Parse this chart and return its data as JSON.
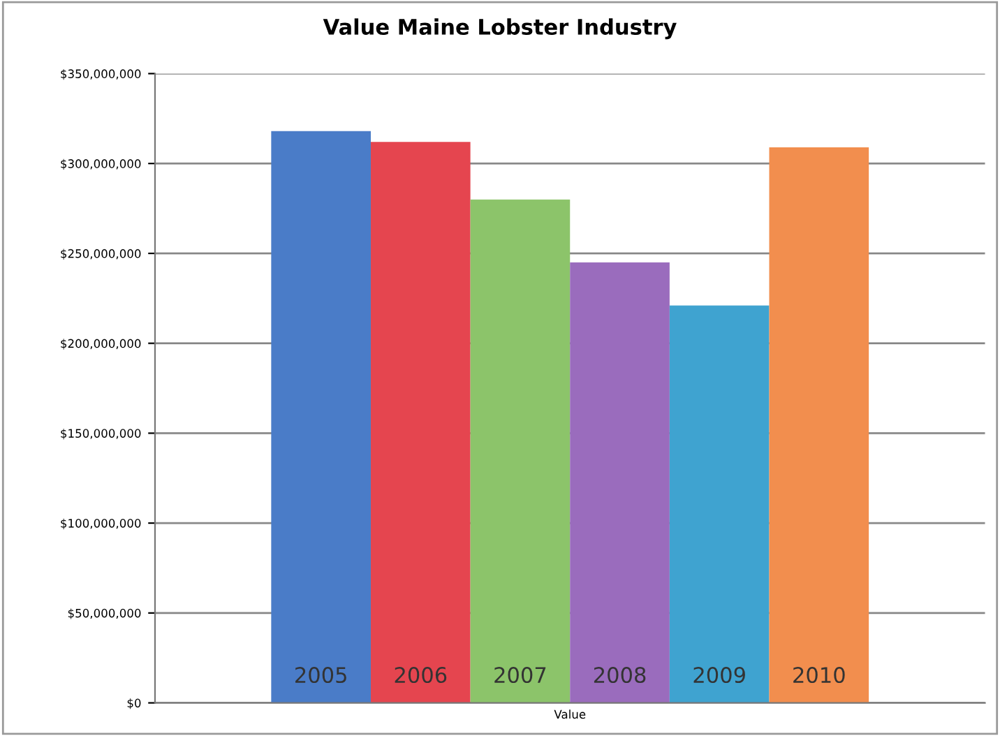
{
  "chart_data": {
    "type": "bar",
    "title": "Value Maine Lobster Industry",
    "categories": [
      "Value"
    ],
    "series": [
      {
        "name": "2005",
        "color": "#4a7cc8",
        "values": [
          318000000
        ]
      },
      {
        "name": "2006",
        "color": "#e5454f",
        "values": [
          312000000
        ]
      },
      {
        "name": "2007",
        "color": "#8cc46a",
        "values": [
          280000000
        ]
      },
      {
        "name": "2008",
        "color": "#9a6cbd",
        "values": [
          245000000
        ]
      },
      {
        "name": "2009",
        "color": "#3fa3d0",
        "values": [
          221000000
        ]
      },
      {
        "name": "2010",
        "color": "#f28e4e",
        "values": [
          309000000
        ]
      }
    ],
    "ylim": [
      0,
      350000000
    ],
    "yticks": [
      {
        "value": 0,
        "label": "$0"
      },
      {
        "value": 50000000,
        "label": "$50,000,000"
      },
      {
        "value": 100000000,
        "label": "$100,000,000"
      },
      {
        "value": 150000000,
        "label": "$150,000,000"
      },
      {
        "value": 200000000,
        "label": "$200,000,000"
      },
      {
        "value": 250000000,
        "label": "$250,000,000"
      },
      {
        "value": 300000000,
        "label": "$300,000,000"
      },
      {
        "value": 350000000,
        "label": "$350,000,000"
      }
    ],
    "grid": "y",
    "legend": false
  }
}
